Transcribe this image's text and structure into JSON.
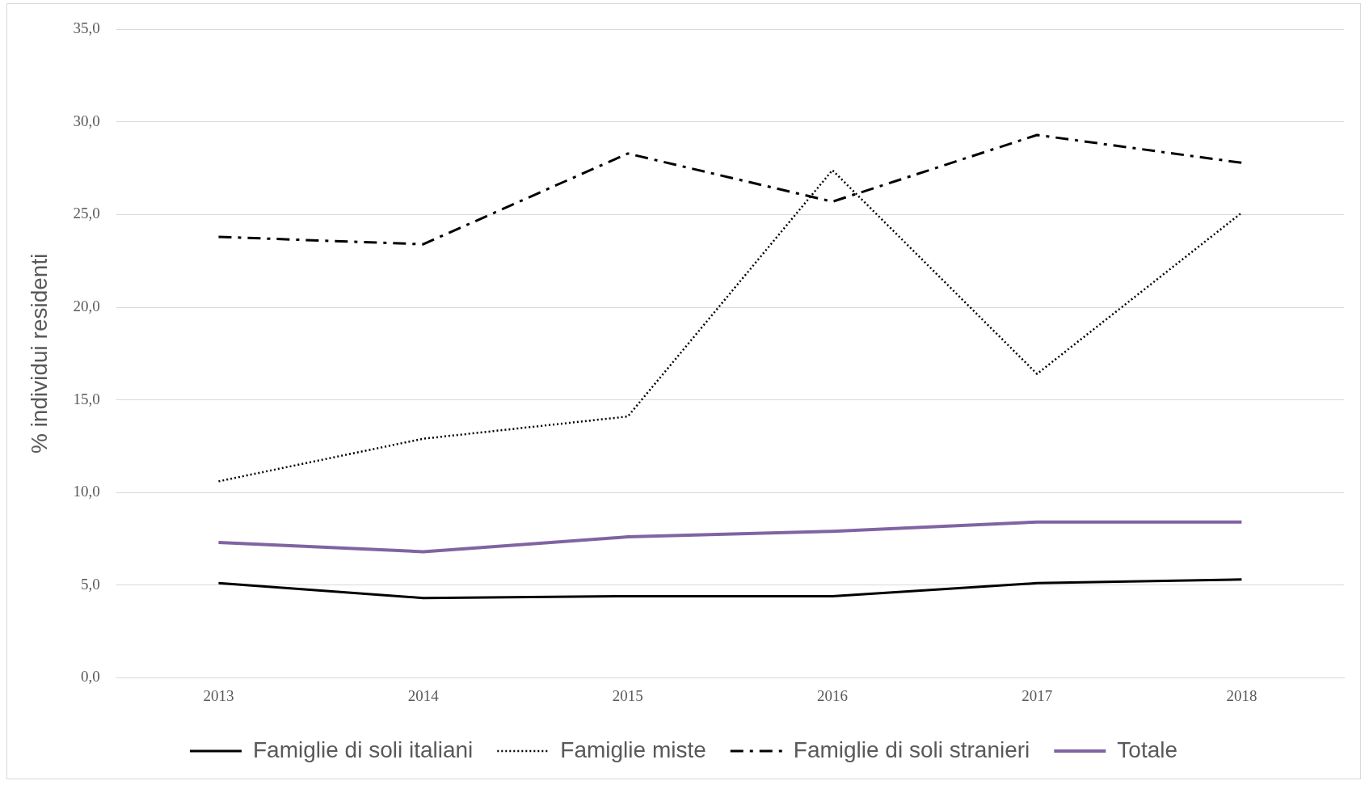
{
  "chart_data": {
    "type": "line",
    "ylabel": "% individui residenti",
    "categories": [
      "2013",
      "2014",
      "2015",
      "2016",
      "2017",
      "2018"
    ],
    "series": [
      {
        "name": "Famiglie di soli italiani",
        "color": "#000000",
        "line_style": "solid",
        "values": [
          5.1,
          4.3,
          4.4,
          4.4,
          5.1,
          5.3
        ]
      },
      {
        "name": "Famiglie miste",
        "color": "#000000",
        "line_style": "dotted",
        "values": [
          10.6,
          12.9,
          14.1,
          27.4,
          16.4,
          25.1
        ]
      },
      {
        "name": "Famiglie di soli stranieri",
        "color": "#000000",
        "line_style": "dashed",
        "values": [
          23.8,
          23.4,
          28.3,
          25.7,
          29.3,
          27.8
        ]
      },
      {
        "name": "Totale",
        "color": "#8064a2",
        "line_style": "solid",
        "values": [
          7.3,
          6.8,
          7.6,
          7.9,
          8.4,
          8.4
        ]
      }
    ],
    "ylim": [
      0,
      35
    ],
    "yticks": [
      {
        "value": 0,
        "label": "0,0"
      },
      {
        "value": 5,
        "label": "5,0"
      },
      {
        "value": 10,
        "label": "10,0"
      },
      {
        "value": 15,
        "label": "15,0"
      },
      {
        "value": 20,
        "label": "20,0"
      },
      {
        "value": 25,
        "label": "25,0"
      },
      {
        "value": 30,
        "label": "30,0"
      },
      {
        "value": 35,
        "label": "35,0"
      }
    ],
    "grid": "y",
    "legend": "bottom",
    "marker": "none"
  }
}
